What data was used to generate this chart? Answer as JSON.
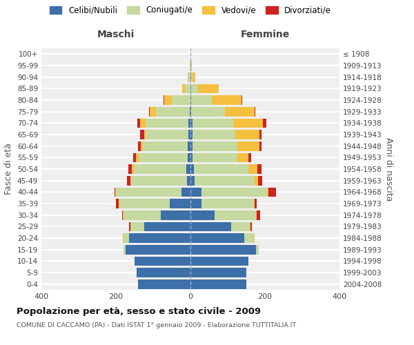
{
  "age_groups": [
    "0-4",
    "5-9",
    "10-14",
    "15-19",
    "20-24",
    "25-29",
    "30-34",
    "35-39",
    "40-44",
    "45-49",
    "50-54",
    "55-59",
    "60-64",
    "65-69",
    "70-74",
    "75-79",
    "80-84",
    "85-89",
    "90-94",
    "95-99",
    "100+"
  ],
  "birth_years": [
    "2004-2008",
    "1999-2003",
    "1994-1998",
    "1989-1993",
    "1984-1988",
    "1979-1983",
    "1974-1978",
    "1969-1973",
    "1964-1968",
    "1959-1963",
    "1954-1958",
    "1949-1953",
    "1944-1948",
    "1939-1943",
    "1934-1938",
    "1929-1933",
    "1924-1928",
    "1919-1923",
    "1914-1918",
    "1909-1913",
    "≤ 1908"
  ],
  "male": {
    "celibi": [
      140,
      145,
      150,
      175,
      165,
      125,
      80,
      55,
      25,
      10,
      12,
      8,
      8,
      5,
      5,
      2,
      0,
      0,
      0,
      0,
      0
    ],
    "coniugati": [
      0,
      0,
      0,
      5,
      15,
      35,
      100,
      135,
      175,
      150,
      140,
      130,
      120,
      115,
      115,
      90,
      50,
      15,
      5,
      2,
      0
    ],
    "vedovi": [
      0,
      0,
      0,
      0,
      2,
      2,
      2,
      2,
      2,
      2,
      5,
      8,
      5,
      5,
      15,
      18,
      20,
      8,
      2,
      0,
      0
    ],
    "divorziati": [
      0,
      0,
      0,
      0,
      0,
      2,
      2,
      8,
      2,
      8,
      10,
      8,
      8,
      10,
      8,
      2,
      2,
      0,
      0,
      0,
      0
    ]
  },
  "female": {
    "nubili": [
      150,
      150,
      155,
      175,
      145,
      110,
      65,
      30,
      30,
      12,
      10,
      5,
      5,
      5,
      5,
      2,
      2,
      2,
      2,
      0,
      0
    ],
    "coniugate": [
      0,
      0,
      0,
      8,
      25,
      50,
      110,
      140,
      175,
      160,
      145,
      120,
      120,
      115,
      110,
      90,
      55,
      18,
      3,
      2,
      0
    ],
    "vedove": [
      0,
      0,
      0,
      0,
      2,
      2,
      2,
      2,
      5,
      10,
      25,
      30,
      60,
      65,
      80,
      80,
      80,
      55,
      8,
      2,
      0
    ],
    "divorziate": [
      0,
      0,
      0,
      0,
      0,
      2,
      10,
      5,
      20,
      10,
      10,
      8,
      5,
      5,
      8,
      2,
      2,
      0,
      0,
      0,
      0
    ]
  },
  "colors": {
    "celibi": "#3d6fa8",
    "coniugati": "#c5d9a0",
    "vedovi": "#f5c040",
    "divorziati": "#cc2222"
  },
  "title": "Popolazione per età, sesso e stato civile - 2009",
  "subtitle": "COMUNE DI CACCAMO (PA) - Dati ISTAT 1° gennaio 2009 - Elaborazione TUTTITALIA.IT",
  "xlabel_left": "Maschi",
  "xlabel_right": "Femmine",
  "ylabel_left": "Fasce di età",
  "ylabel_right": "Anni di nascita",
  "xlim": 400,
  "legend_labels": [
    "Celibi/Nubili",
    "Coniugati/e",
    "Vedovi/e",
    "Divorziati/e"
  ],
  "bg_color": "#efefef",
  "grid_color": "#ffffff"
}
